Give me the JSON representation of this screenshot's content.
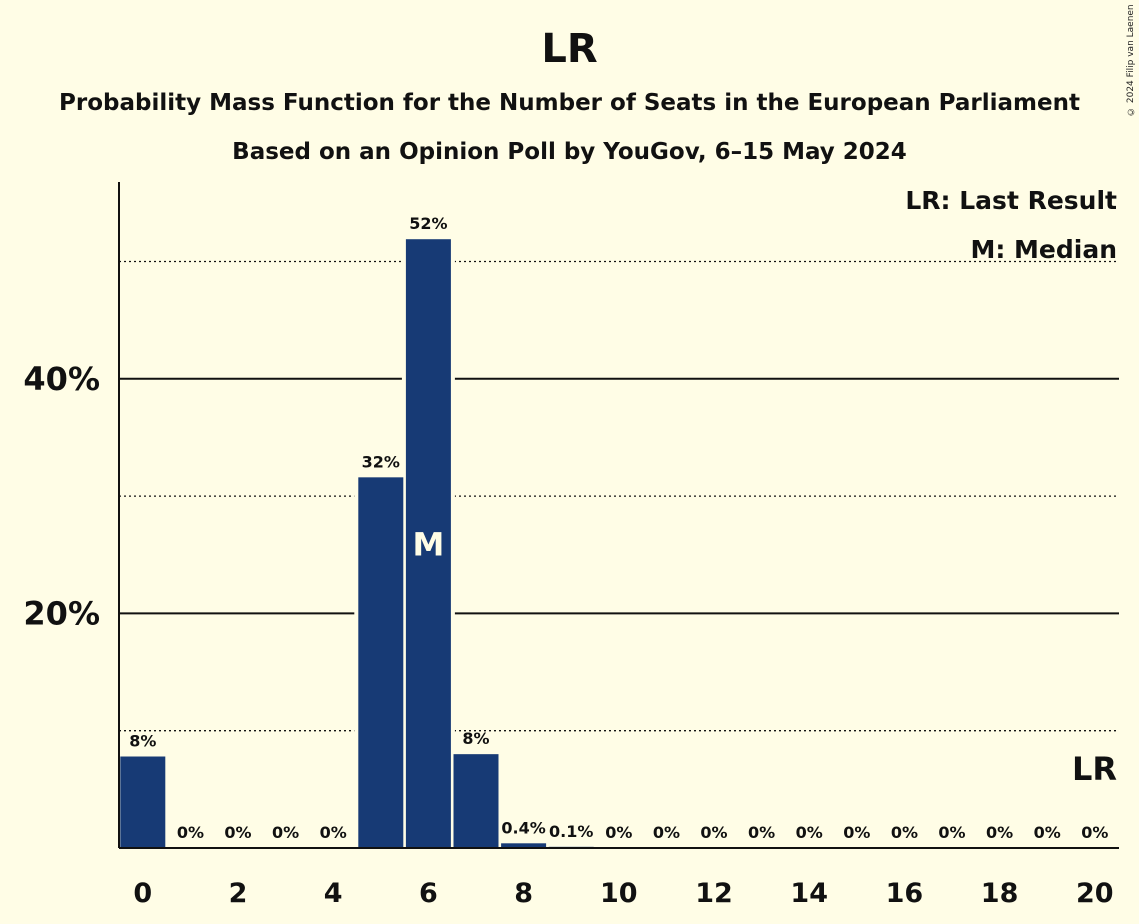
{
  "title": "LR",
  "subtitle1": "Probability Mass Function for the Number of Seats in the European Parliament",
  "subtitle2": "Based on an Opinion Poll by YouGov, 6–15 May 2024",
  "copyright": "© 2024 Filip van Laenen",
  "legend": {
    "last_result": "LR: Last Result",
    "median": "M: Median"
  },
  "colors": {
    "bar": "#173A75",
    "background": "#FFFDE6"
  },
  "chart_data": {
    "type": "bar",
    "categories": [
      0,
      1,
      2,
      3,
      4,
      5,
      6,
      7,
      8,
      9,
      10,
      11,
      12,
      13,
      14,
      15,
      16,
      17,
      18,
      19,
      20
    ],
    "values": [
      7.8,
      0,
      0,
      0,
      0,
      31.6,
      51.9,
      8.0,
      0.4,
      0.1,
      0,
      0,
      0,
      0,
      0,
      0,
      0,
      0,
      0,
      0,
      0
    ],
    "value_labels": [
      "8%",
      "0%",
      "0%",
      "0%",
      "0%",
      "32%",
      "52%",
      "8%",
      "0.4%",
      "0.1%",
      "0%",
      "0%",
      "0%",
      "0%",
      "0%",
      "0%",
      "0%",
      "0%",
      "0%",
      "0%",
      "0%"
    ],
    "x_tick_labels": [
      "0",
      "2",
      "4",
      "6",
      "8",
      "10",
      "12",
      "14",
      "16",
      "18",
      "20"
    ],
    "y_tick_labels": [
      "20%",
      "40%"
    ],
    "ylim": [
      0,
      56.5
    ],
    "solid_gridlines": [
      20,
      40
    ],
    "dotted_gridlines": [
      10,
      30,
      50
    ],
    "median_seats": 6,
    "median_marker": "M",
    "last_result_seats": 20,
    "last_result_marker": "LR"
  }
}
